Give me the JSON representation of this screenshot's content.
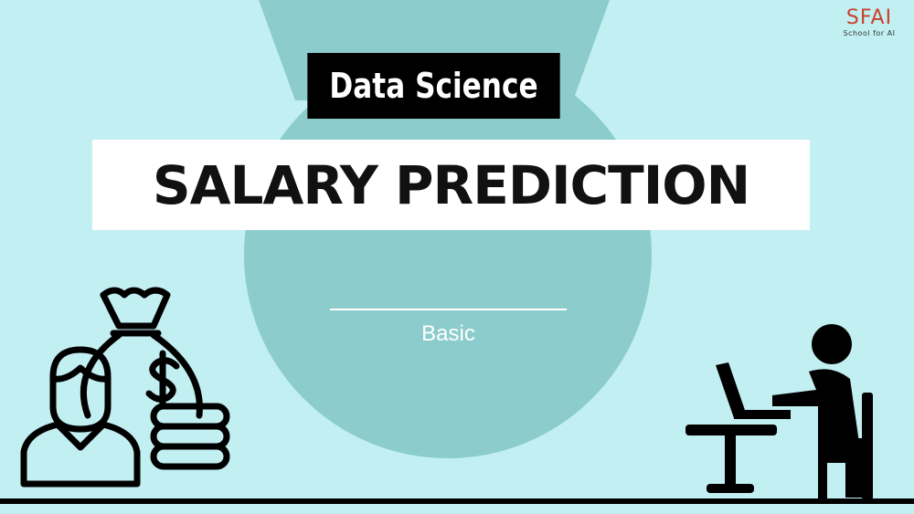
{
  "slide": {
    "background_color": "#c2eff2",
    "accent_shape_color": "#8ccccc"
  },
  "logo": {
    "mark": "SFAI",
    "subtitle": "School for AI",
    "color": "#c8412e"
  },
  "header": {
    "tag": "Data Science",
    "title": "SALARY PREDICTION"
  },
  "main": {
    "subtitle": "Basic"
  },
  "illustrations": {
    "left": [
      "person-icon",
      "money-bag-icon",
      "dollar-sign-icon",
      "coin-stack-icon"
    ],
    "right": [
      "person-at-laptop-icon",
      "desk-icon",
      "chair-icon"
    ]
  }
}
